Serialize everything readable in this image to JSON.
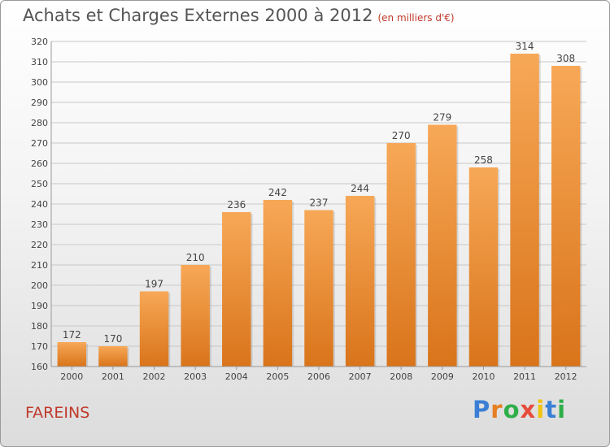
{
  "header": {
    "title": "Achats et Charges Externes 2000 à 2012",
    "subtitle": "(en milliers d'€)"
  },
  "footer": {
    "commune": "FAREINS",
    "logo_letters": [
      "P",
      "r",
      "o",
      "x",
      "i",
      "t",
      "i"
    ],
    "logo_colors": [
      "#3a7fd5",
      "#e67e22",
      "#2eaf4a",
      "#e74c3c",
      "#f1c40f",
      "#3a7fd5",
      "#2eaf4a"
    ]
  },
  "colors": {
    "bar_top": "#f7a857",
    "bar_bottom": "#d9741a",
    "grid": "#c8c8c8",
    "text": "#444444"
  },
  "chart_data": {
    "type": "bar",
    "title": "Achats et Charges Externes 2000 à 2012",
    "subtitle": "(en milliers d'€)",
    "categories": [
      "2000",
      "2001",
      "2002",
      "2003",
      "2004",
      "2005",
      "2006",
      "2007",
      "2008",
      "2009",
      "2010",
      "2011",
      "2012"
    ],
    "values": [
      172,
      170,
      197,
      210,
      236,
      242,
      237,
      244,
      270,
      279,
      258,
      314,
      308
    ],
    "ylim": [
      160,
      320
    ],
    "yticks": [
      160,
      170,
      180,
      190,
      200,
      210,
      220,
      230,
      240,
      250,
      260,
      270,
      280,
      290,
      300,
      310,
      320
    ],
    "grid": true,
    "xlabel": "",
    "ylabel": ""
  }
}
